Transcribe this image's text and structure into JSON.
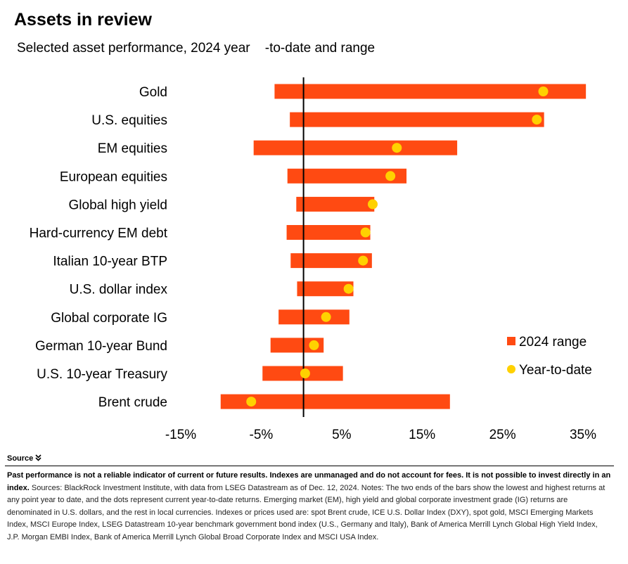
{
  "header": {
    "title": "Assets in review",
    "subtitle": "Selected asset performance, 2024 year    -to-date and range"
  },
  "colors": {
    "range": "#ff4a12",
    "ytd": "#ffd100",
    "zero_line": "#000000"
  },
  "chart_data": {
    "type": "bar",
    "title": "Assets in review",
    "subtitle": "Selected asset performance, 2024 year -to-date and range",
    "categories": [
      "Gold",
      "U.S. equities",
      "EM equities",
      "European equities",
      "Global high yield",
      "Hard-currency EM debt",
      "Italian 10-year BTP",
      "U.S. dollar index",
      "Global corporate IG",
      "German 10-year Bund",
      "U.S. 10-year Treasury",
      "Brent crude"
    ],
    "series": [
      {
        "name": "2024 range",
        "low": [
          -3.6,
          -1.7,
          -6.2,
          -2.0,
          -0.9,
          -2.1,
          -1.6,
          -0.8,
          -3.1,
          -4.1,
          -5.1,
          -10.3
        ],
        "high": [
          35.1,
          29.9,
          19.1,
          12.8,
          8.8,
          8.3,
          8.5,
          6.2,
          5.7,
          2.5,
          4.9,
          18.2
        ]
      },
      {
        "name": "Year-to-date",
        "values": [
          29.8,
          29.0,
          11.6,
          10.8,
          8.6,
          7.7,
          7.4,
          5.6,
          2.8,
          1.3,
          0.2,
          -6.5
        ]
      }
    ],
    "xlim": [
      -15,
      35
    ],
    "xticks": [
      -15,
      -5,
      5,
      15,
      25,
      35
    ],
    "xtick_labels": [
      "-15%",
      "-5%",
      "5%",
      "15%",
      "25%",
      "35%"
    ],
    "xlabel": "",
    "ylabel": "",
    "legend": {
      "placement": "right",
      "entries": [
        "2024 range",
        "Year-to-date"
      ]
    },
    "grid": false
  },
  "footer": {
    "source_label": "Source",
    "source_icon": "chevron-double-down-icon",
    "disclaimer": "Past performance is not a reliable indicator of current or future results. Indexes are unmanaged and do not account for fees. It is not possible to invest directly in an index.",
    "notes": "Sources: BlackRock Investment Institute, with data from LSEG Datastream as of Dec. 12, 2024. Notes: The two ends of the bars show the lowest and highest returns at any point year to date, and the dots represent current year-to-date returns. Emerging market (EM), high yield and global corporate investment grade (IG) returns are denominated in U.S. dollars, and the rest in local currencies. Indexes or prices used are: spot Brent crude, ICE U.S. Dollar Index (DXY), spot gold, MSCI Emerging Markets Index, MSCI Europe Index, LSEG Datastream 10-year benchmark government bond index (U.S., Germany and Italy), Bank of America Merrill Lynch Global High Yield Index, J.P. Morgan EMBI Index, Bank of America Merrill Lynch Global Broad Corporate Index and MSCI USA Index."
  }
}
